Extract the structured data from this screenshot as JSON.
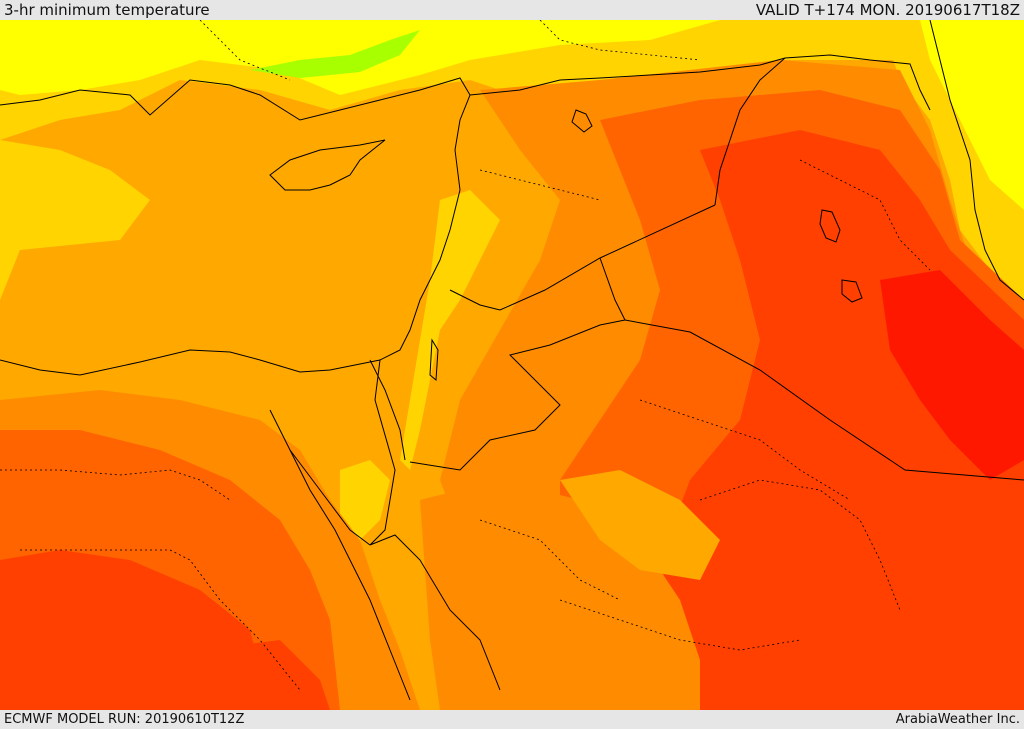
{
  "header": {
    "title": "3-hr minimum temperature",
    "valid": "VALID T+174 MON. 20190617T18Z"
  },
  "footer": {
    "model_run": "ECMWF MODEL RUN: 20190610T12Z",
    "credit": "ArabiaWeather Inc."
  },
  "colors": {
    "sea_orange": "#ffa800",
    "light_yellow": "#ffd400",
    "yellow": "#ffff00",
    "green": "#a8ff00",
    "orange": "#ff8c00",
    "deep_orange": "#ff6400",
    "red_orange": "#ff4000",
    "red": "#ff1800",
    "borders": "#000000"
  }
}
